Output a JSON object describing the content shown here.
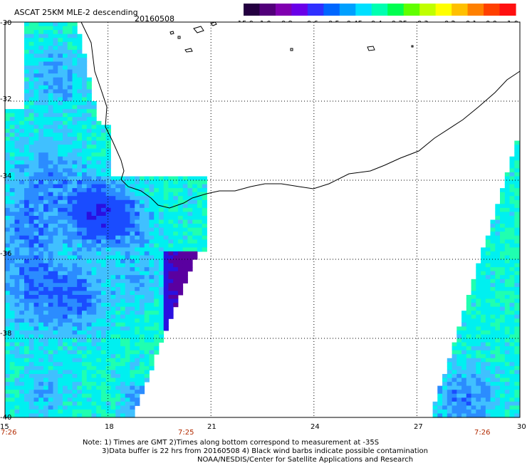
{
  "header": {
    "title": "ASCAT 25KM MLE-2 descending",
    "date": "20160508"
  },
  "colorbar": {
    "labels": [
      "-15.0",
      "-1.0",
      "-0.8",
      "-0.6",
      "-0.5",
      "-0.45",
      "-0.4",
      "-0.35",
      "-0.3",
      "-0.2",
      "-0.1",
      "0.0",
      "1.0"
    ],
    "colors": [
      "#240040",
      "#52007a",
      "#8000b0",
      "#6a00e8",
      "#3030ff",
      "#0066ff",
      "#00a0ff",
      "#00e0ff",
      "#00ffb0",
      "#00ff50",
      "#60ff00",
      "#c0ff00",
      "#ffff00",
      "#ffc000",
      "#ff8000",
      "#ff4000",
      "#ff1010"
    ]
  },
  "axes": {
    "x_ticks": [
      "15",
      "18",
      "21",
      "24",
      "27",
      "30"
    ],
    "y_ticks": [
      "-30",
      "-32",
      "-34",
      "-36",
      "-38",
      "-40"
    ],
    "time_labels": [
      "7:26",
      "7:25",
      "7:26"
    ]
  },
  "notes": {
    "line1": "Note: 1) Times are GMT 2)Times along bottom correspond to measurement at -35S",
    "line2": "3)Data buffer is 22 hrs from 20160508 4) Black wind barbs indicate possible contamination",
    "line3": "NOAA/NESDIS/Center for Satellite Applications and Research"
  },
  "chart_data": {
    "type": "heatmap",
    "title": "ASCAT 25KM MLE-2 descending",
    "date": "20160508",
    "x_label": "",
    "y_label": "",
    "xlim": [
      15,
      30
    ],
    "ylim": [
      -40,
      -30
    ],
    "x_ticks": [
      15,
      18,
      21,
      24,
      27,
      30
    ],
    "y_ticks": [
      -30,
      -32,
      -34,
      -36,
      -38,
      -40
    ],
    "grid": "dotted",
    "color_scale": {
      "breaks": [
        -15.0,
        -1.0,
        -0.8,
        -0.6,
        -0.5,
        -0.45,
        -0.4,
        -0.35,
        -0.3,
        -0.2,
        -0.1,
        0.0,
        1.0
      ]
    },
    "swaths": [
      {
        "name": "west",
        "time": "7:26",
        "lon_range": [
          15,
          21.1
        ],
        "lat_range": [
          -40,
          -30
        ],
        "value_range": [
          -1.0,
          -0.3
        ]
      },
      {
        "name": "east",
        "time": "7:26",
        "lon_range": [
          27.4,
          30
        ],
        "lat_range": [
          -40,
          -31.1
        ],
        "value_range": [
          -1.0,
          -0.3
        ]
      }
    ]
  }
}
